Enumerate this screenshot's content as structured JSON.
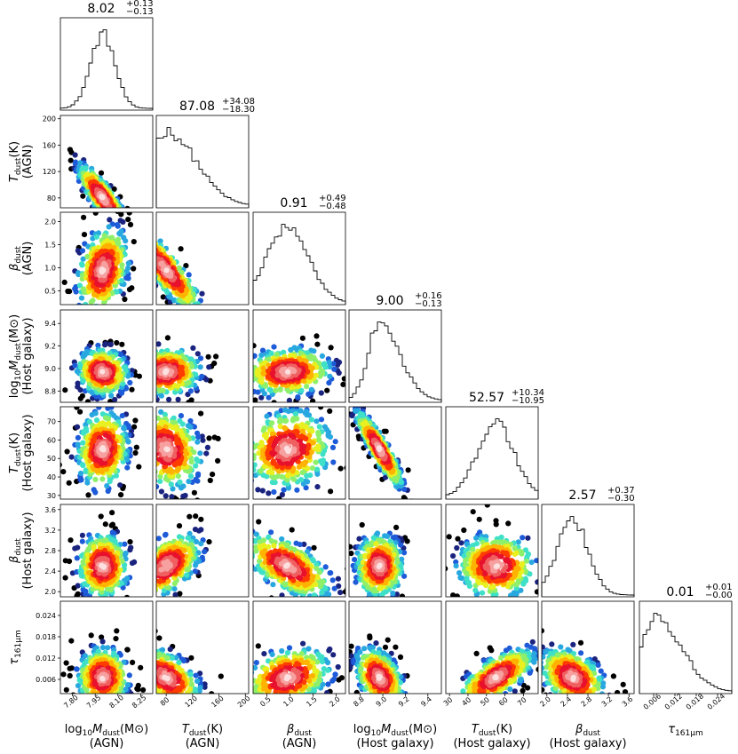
{
  "chart_data": {
    "type": "corner",
    "n_params": 7,
    "parameters": [
      {
        "name": "log10_Mdust_AGN",
        "label_line1_base": "log",
        "label_line1_sub": "10",
        "label_line1_main": "M",
        "label_line1_main_sub": "dust",
        "label_line1_tail": "(M⊙)",
        "label_line2": "(AGN)",
        "range": [
          7.72,
          8.33
        ],
        "ticks": [
          7.8,
          7.95,
          8.1,
          8.25
        ],
        "tick_labels": [
          "7.80",
          "7.95",
          "8.10",
          "8.25"
        ],
        "median": "8.02",
        "plus": "+0.13",
        "minus": "−0.13",
        "peak": 8.0,
        "spread": 0.08
      },
      {
        "name": "Tdust_AGN",
        "label_main": "T",
        "label_sub": "dust",
        "label_tail": "(K)",
        "label_line2": "(AGN)",
        "range": [
          65,
          205
        ],
        "ticks": [
          80,
          120,
          160,
          200
        ],
        "tick_labels": [
          "80",
          "120",
          "160",
          "200"
        ],
        "median": "87.08",
        "plus": "+34.08",
        "minus": "−18.30",
        "peak": 80,
        "spread": 25
      },
      {
        "name": "beta_dust_AGN",
        "label_main": "β",
        "label_sub": "dust",
        "label_tail": "",
        "label_line2": "(AGN)",
        "range": [
          0.2,
          2.2
        ],
        "ticks": [
          0.5,
          1.0,
          1.5,
          2.0
        ],
        "tick_labels": [
          "0.5",
          "1.0",
          "1.5",
          "2.0"
        ],
        "median": "0.91",
        "plus": "+0.49",
        "minus": "−0.48",
        "peak": 0.95,
        "spread": 0.45
      },
      {
        "name": "log10_Mdust_host",
        "label_line1_base": "log",
        "label_line1_sub": "10",
        "label_line1_main": "M",
        "label_line1_main_sub": "dust",
        "label_line1_tail": "(M⊙)",
        "label_line2": "(Host galaxy)",
        "range": [
          8.7,
          9.52
        ],
        "ticks": [
          8.8,
          9.0,
          9.2,
          9.4
        ],
        "tick_labels": [
          "8.8",
          "9.0",
          "9.2",
          "9.4"
        ],
        "median": "9.00",
        "plus": "+0.16",
        "minus": "−0.13",
        "peak": 8.97,
        "spread": 0.1
      },
      {
        "name": "Tdust_host",
        "label_main": "T",
        "label_sub": "dust",
        "label_tail": "(K)",
        "label_line2": "(Host galaxy)",
        "range": [
          28,
          78
        ],
        "ticks": [
          30,
          40,
          50,
          60,
          70
        ],
        "tick_labels": [
          "30",
          "40",
          "50",
          "60",
          "70"
        ],
        "median": "52.57",
        "plus": "+10.34",
        "minus": "−10.95",
        "peak": 55,
        "spread": 10
      },
      {
        "name": "beta_dust_host",
        "label_main": "β",
        "label_sub": "dust",
        "label_tail": "",
        "label_line2": "(Host galaxy)",
        "range": [
          1.9,
          3.7
        ],
        "ticks": [
          2.0,
          2.4,
          2.8,
          3.2,
          3.6
        ],
        "tick_labels": [
          "2.0",
          "2.4",
          "2.8",
          "3.2",
          "3.6"
        ],
        "median": "2.57",
        "plus": "+0.37",
        "minus": "−0.30",
        "peak": 2.5,
        "spread": 0.3
      },
      {
        "name": "tau_161um",
        "label_main": "τ",
        "label_sub": "161μm",
        "label_tail": "",
        "label_line2": "",
        "range": [
          0.002,
          0.028
        ],
        "ticks": [
          0.006,
          0.012,
          0.018,
          0.024
        ],
        "tick_labels": [
          "0.006",
          "0.012",
          "0.018",
          "0.024"
        ],
        "median": "0.01",
        "plus": "+0.01",
        "minus": "−0.00",
        "peak": 0.0065,
        "spread": 0.004
      }
    ],
    "row_labels": [
      {
        "main": "T",
        "sub": "dust",
        "tail": "(K)",
        "line2": "(AGN)"
      },
      {
        "main": "β",
        "sub": "dust",
        "tail": "",
        "line2": "(AGN)"
      },
      {
        "prefix": "log",
        "prefix_sub": "10",
        "main": "M",
        "sub": "dust",
        "tail": "(M⊙)",
        "line2": "(Host galaxy)"
      },
      {
        "main": "T",
        "sub": "dust",
        "tail": "(K)",
        "line2": "(Host galaxy)"
      },
      {
        "main": "β",
        "sub": "dust",
        "tail": "",
        "line2": "(Host galaxy)"
      },
      {
        "main": "τ",
        "sub": "161μm",
        "tail": "",
        "line2": ""
      }
    ],
    "colormap": [
      "#000000",
      "#1a237e",
      "#1e5bd8",
      "#29a8e0",
      "#3ee0c8",
      "#8ef06a",
      "#e8f020",
      "#ffb300",
      "#ff3b00",
      "#e8112d",
      "#f06060",
      "#f7a0a0",
      "#fde0e0"
    ]
  }
}
